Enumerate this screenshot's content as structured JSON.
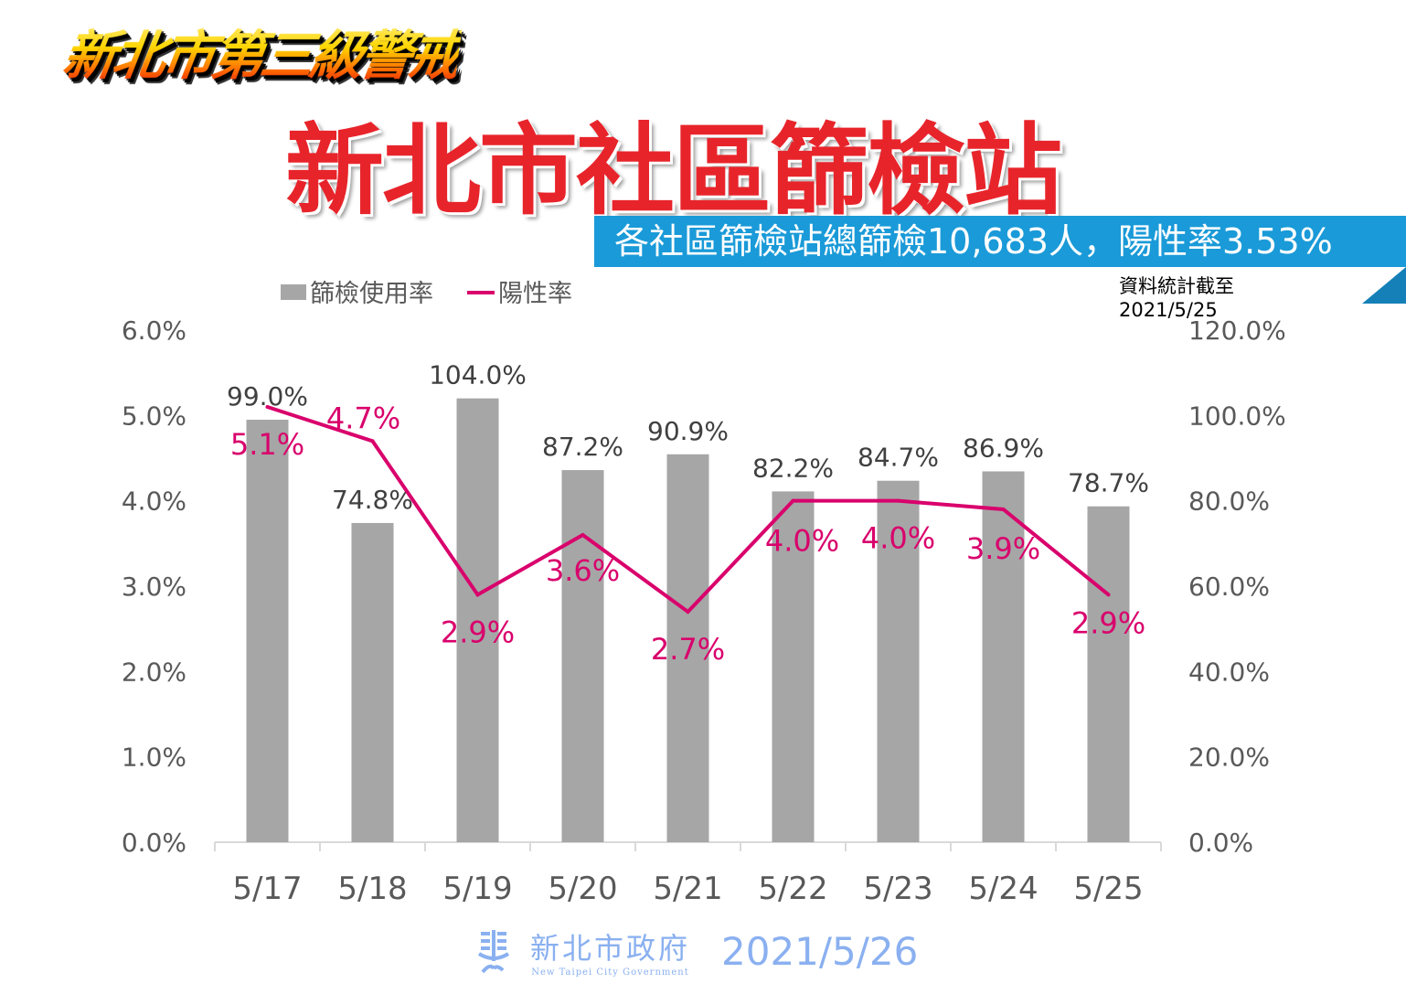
{
  "header": {
    "banner": "新北市第三級警戒",
    "title": "新北市社區篩檢站",
    "subtitle": "各社區篩檢站總篩檢10,683人，陽性率3.53%",
    "as_of_label": "資料統計截至",
    "as_of_date": "2021/5/25"
  },
  "footer": {
    "org_cn": "新北市政府",
    "org_en": "New Taipei City Government",
    "date": "2021/5/26"
  },
  "chart_data": {
    "type": "bar+line",
    "categories": [
      "5/17",
      "5/18",
      "5/19",
      "5/20",
      "5/21",
      "5/22",
      "5/23",
      "5/24",
      "5/25"
    ],
    "series": [
      {
        "name": "篩檢使用率",
        "type": "bar",
        "axis": "right",
        "color": "#a6a6a6",
        "values": [
          99.0,
          74.8,
          104.0,
          87.2,
          90.9,
          82.2,
          84.7,
          86.9,
          78.7
        ],
        "labels": [
          "99.0%",
          "74.8%",
          "104.0%",
          "87.2%",
          "90.9%",
          "82.2%",
          "84.7%",
          "86.9%",
          "78.7%"
        ]
      },
      {
        "name": "陽性率",
        "type": "line",
        "axis": "left",
        "color": "#d9006c",
        "values": [
          5.1,
          4.7,
          2.9,
          3.6,
          2.7,
          4.0,
          4.0,
          3.9,
          2.9
        ],
        "labels": [
          "5.1%",
          "4.7%",
          "2.9%",
          "3.6%",
          "2.7%",
          "4.0%",
          "4.0%",
          "3.9%",
          "2.9%"
        ]
      }
    ],
    "left_axis": {
      "range": [
        0,
        6
      ],
      "ticks": [
        "0.0%",
        "1.0%",
        "2.0%",
        "3.0%",
        "4.0%",
        "5.0%",
        "6.0%"
      ]
    },
    "right_axis": {
      "range": [
        0,
        120
      ],
      "ticks": [
        "0.0%",
        "20.0%",
        "40.0%",
        "60.0%",
        "80.0%",
        "100.0%",
        "120.0%"
      ]
    },
    "legend": "top-left",
    "grid": false
  }
}
